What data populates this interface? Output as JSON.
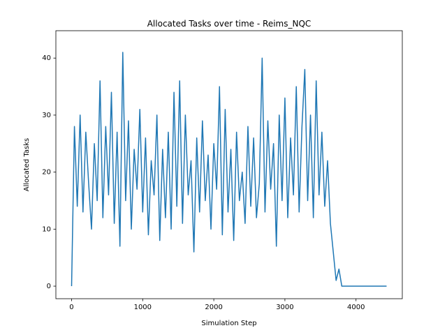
{
  "chart_data": {
    "type": "line",
    "title": "Allocated Tasks over time - Reims_NQC",
    "x_label": "Simulation Step",
    "y_label": "Allocated Tasks",
    "x": [
      0,
      40,
      80,
      120,
      160,
      200,
      240,
      280,
      320,
      360,
      400,
      440,
      480,
      520,
      560,
      600,
      640,
      680,
      720,
      760,
      800,
      840,
      880,
      920,
      960,
      1000,
      1040,
      1080,
      1120,
      1160,
      1200,
      1240,
      1280,
      1320,
      1360,
      1400,
      1440,
      1480,
      1520,
      1560,
      1600,
      1640,
      1680,
      1720,
      1760,
      1800,
      1840,
      1880,
      1920,
      1960,
      2000,
      2040,
      2080,
      2120,
      2160,
      2200,
      2240,
      2280,
      2320,
      2360,
      2400,
      2440,
      2480,
      2520,
      2560,
      2600,
      2640,
      2680,
      2720,
      2760,
      2800,
      2840,
      2880,
      2920,
      2960,
      3000,
      3040,
      3080,
      3120,
      3160,
      3200,
      3240,
      3280,
      3320,
      3360,
      3400,
      3440,
      3480,
      3520,
      3560,
      3600,
      3640,
      3680,
      3720,
      3760,
      3800,
      4430
    ],
    "series": [
      {
        "name": "Allocated Tasks",
        "color": "#1f77b4",
        "values": [
          0,
          28,
          14,
          30,
          13,
          27,
          18,
          10,
          25,
          15,
          36,
          12,
          28,
          16,
          34,
          11,
          27,
          7,
          41,
          15,
          29,
          10,
          24,
          17,
          31,
          13,
          26,
          9,
          22,
          16,
          30,
          8,
          24,
          12,
          27,
          10,
          34,
          14,
          36,
          11,
          30,
          16,
          22,
          6,
          26,
          13,
          29,
          15,
          23,
          10,
          25,
          17,
          35,
          9,
          31,
          13,
          24,
          8,
          27,
          15,
          20,
          11,
          28,
          14,
          26,
          12,
          18,
          40,
          13,
          29,
          17,
          25,
          7,
          30,
          15,
          33,
          12,
          26,
          16,
          35,
          13,
          28,
          38,
          15,
          30,
          12,
          36,
          16,
          27,
          14,
          22,
          11,
          6,
          1,
          3,
          0,
          0
        ]
      }
    ],
    "xlim": [
      -221,
      4651
    ],
    "ylim": [
      -2.2,
      44.8
    ],
    "xticks": [
      0,
      1000,
      2000,
      3000,
      4000
    ],
    "yticks": [
      0,
      10,
      20,
      30,
      40
    ]
  }
}
